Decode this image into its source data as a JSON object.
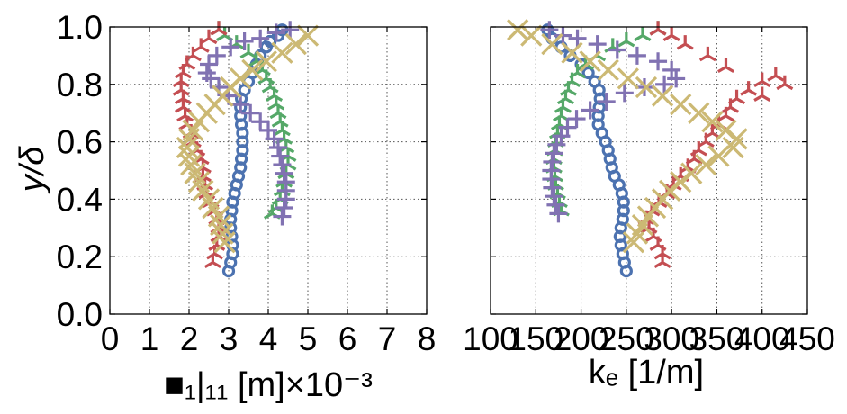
{
  "colors": {
    "blue": "#4c72b0",
    "green": "#55a868",
    "red": "#c44e52",
    "purple": "#8172b2",
    "gold": "#ccb974"
  },
  "chart_data": [
    {
      "type": "scatter",
      "xlabel": "■₁|₁₁ [m]×10⁻³",
      "ylabel": "y/δ",
      "xlim": [
        0,
        8
      ],
      "ylim": [
        0,
        1.0
      ],
      "xticks": [
        "0",
        "1",
        "2",
        "3",
        "4",
        "5",
        "6",
        "7",
        "8"
      ],
      "yticks": [
        "0.0",
        "0.2",
        "0.4",
        "0.6",
        "0.8",
        "1.0"
      ],
      "grid": true,
      "series": [
        {
          "marker": "circle",
          "color": "blue",
          "points": [
            [
              3.0,
              0.15
            ],
            [
              3.05,
              0.18
            ],
            [
              3.1,
              0.21
            ],
            [
              3.1,
              0.24
            ],
            [
              3.08,
              0.27
            ],
            [
              3.05,
              0.3
            ],
            [
              3.05,
              0.33
            ],
            [
              3.08,
              0.36
            ],
            [
              3.1,
              0.39
            ],
            [
              3.15,
              0.42
            ],
            [
              3.2,
              0.45
            ],
            [
              3.25,
              0.48
            ],
            [
              3.3,
              0.51
            ],
            [
              3.32,
              0.54
            ],
            [
              3.35,
              0.57
            ],
            [
              3.35,
              0.6
            ],
            [
              3.35,
              0.63
            ],
            [
              3.32,
              0.66
            ],
            [
              3.3,
              0.69
            ],
            [
              3.3,
              0.72
            ],
            [
              3.32,
              0.75
            ],
            [
              3.4,
              0.78
            ],
            [
              3.5,
              0.81
            ],
            [
              3.6,
              0.84
            ],
            [
              3.7,
              0.87
            ],
            [
              3.8,
              0.9
            ],
            [
              3.95,
              0.93
            ],
            [
              4.05,
              0.95
            ],
            [
              4.25,
              0.97
            ],
            [
              4.35,
              0.99
            ]
          ]
        },
        {
          "marker": "tri",
          "color": "green",
          "points": [
            [
              4.1,
              0.35
            ],
            [
              4.2,
              0.37
            ],
            [
              4.3,
              0.4
            ],
            [
              4.35,
              0.43
            ],
            [
              4.4,
              0.46
            ],
            [
              4.45,
              0.49
            ],
            [
              4.5,
              0.52
            ],
            [
              4.5,
              0.55
            ],
            [
              4.45,
              0.58
            ],
            [
              4.4,
              0.61
            ],
            [
              4.35,
              0.64
            ],
            [
              4.3,
              0.67
            ],
            [
              4.25,
              0.7
            ],
            [
              4.2,
              0.73
            ],
            [
              4.15,
              0.76
            ],
            [
              4.05,
              0.79
            ],
            [
              3.95,
              0.82
            ],
            [
              3.85,
              0.85
            ],
            [
              3.7,
              0.88
            ],
            [
              3.5,
              0.91
            ],
            [
              3.2,
              0.94
            ],
            [
              2.9,
              0.97
            ],
            [
              2.75,
              0.99
            ]
          ]
        },
        {
          "marker": "tri",
          "color": "red",
          "points": [
            [
              2.6,
              0.18
            ],
            [
              2.65,
              0.21
            ],
            [
              2.7,
              0.24
            ],
            [
              2.75,
              0.27
            ],
            [
              2.75,
              0.3
            ],
            [
              2.7,
              0.33
            ],
            [
              2.65,
              0.36
            ],
            [
              2.55,
              0.39
            ],
            [
              2.45,
              0.42
            ],
            [
              2.4,
              0.45
            ],
            [
              2.35,
              0.48
            ],
            [
              2.35,
              0.51
            ],
            [
              2.3,
              0.54
            ],
            [
              2.2,
              0.57
            ],
            [
              2.1,
              0.6
            ],
            [
              2.05,
              0.63
            ],
            [
              1.95,
              0.66
            ],
            [
              1.9,
              0.69
            ],
            [
              1.85,
              0.72
            ],
            [
              1.85,
              0.75
            ],
            [
              1.8,
              0.78
            ],
            [
              1.8,
              0.81
            ],
            [
              1.85,
              0.84
            ],
            [
              1.95,
              0.87
            ],
            [
              2.1,
              0.9
            ],
            [
              2.3,
              0.93
            ],
            [
              2.5,
              0.96
            ],
            [
              2.75,
              0.99
            ]
          ]
        },
        {
          "marker": "plus",
          "color": "purple",
          "points": [
            [
              4.35,
              0.34
            ],
            [
              4.4,
              0.37
            ],
            [
              4.45,
              0.4
            ],
            [
              4.45,
              0.43
            ],
            [
              4.45,
              0.46
            ],
            [
              4.4,
              0.49
            ],
            [
              4.35,
              0.52
            ],
            [
              4.3,
              0.55
            ],
            [
              4.25,
              0.58
            ],
            [
              4.15,
              0.61
            ],
            [
              4.0,
              0.64
            ],
            [
              3.8,
              0.67
            ],
            [
              3.55,
              0.7
            ],
            [
              3.3,
              0.73
            ],
            [
              3.0,
              0.76
            ],
            [
              2.75,
              0.79
            ],
            [
              2.55,
              0.82
            ],
            [
              2.45,
              0.84
            ],
            [
              2.5,
              0.87
            ],
            [
              2.7,
              0.9
            ],
            [
              3.05,
              0.93
            ],
            [
              3.4,
              0.95
            ],
            [
              3.8,
              0.96
            ],
            [
              4.2,
              0.98
            ],
            [
              4.55,
              0.99
            ]
          ]
        },
        {
          "marker": "x",
          "color": "gold",
          "points": [
            [
              2.9,
              0.25
            ],
            [
              2.85,
              0.28
            ],
            [
              2.8,
              0.31
            ],
            [
              2.75,
              0.34
            ],
            [
              2.6,
              0.37
            ],
            [
              2.5,
              0.4
            ],
            [
              2.35,
              0.43
            ],
            [
              2.25,
              0.46
            ],
            [
              2.15,
              0.49
            ],
            [
              2.05,
              0.52
            ],
            [
              2.0,
              0.55
            ],
            [
              1.95,
              0.58
            ],
            [
              2.0,
              0.61
            ],
            [
              2.1,
              0.64
            ],
            [
              2.25,
              0.67
            ],
            [
              2.45,
              0.7
            ],
            [
              2.65,
              0.73
            ],
            [
              2.85,
              0.76
            ],
            [
              3.05,
              0.79
            ],
            [
              3.3,
              0.82
            ],
            [
              3.6,
              0.85
            ],
            [
              3.95,
              0.88
            ],
            [
              4.35,
              0.91
            ],
            [
              4.7,
              0.94
            ],
            [
              5.0,
              0.97
            ]
          ]
        }
      ]
    },
    {
      "type": "scatter",
      "xlabel": "kₑ [1/m]",
      "ylabel": "",
      "xlim": [
        100,
        450
      ],
      "ylim": [
        0,
        1.0
      ],
      "xticks": [
        "100",
        "150",
        "200",
        "250",
        "300",
        "350",
        "400",
        "450"
      ],
      "yticks": [],
      "grid": true,
      "series": [
        {
          "marker": "circle",
          "color": "blue",
          "points": [
            [
              250,
              0.15
            ],
            [
              248,
              0.18
            ],
            [
              246,
              0.21
            ],
            [
              244,
              0.24
            ],
            [
              243,
              0.27
            ],
            [
              244,
              0.3
            ],
            [
              246,
              0.33
            ],
            [
              247,
              0.36
            ],
            [
              247,
              0.39
            ],
            [
              245,
              0.42
            ],
            [
              242,
              0.45
            ],
            [
              237,
              0.48
            ],
            [
              234,
              0.51
            ],
            [
              232,
              0.54
            ],
            [
              230,
              0.57
            ],
            [
              227,
              0.6
            ],
            [
              223,
              0.63
            ],
            [
              219,
              0.66
            ],
            [
              219,
              0.69
            ],
            [
              220,
              0.72
            ],
            [
              221,
              0.75
            ],
            [
              220,
              0.78
            ],
            [
              215,
              0.81
            ],
            [
              208,
              0.84
            ],
            [
              200,
              0.87
            ],
            [
              188,
              0.9
            ],
            [
              178,
              0.93
            ],
            [
              168,
              0.96
            ],
            [
              163,
              0.99
            ]
          ]
        },
        {
          "marker": "tri",
          "color": "green",
          "points": [
            [
              178,
              0.36
            ],
            [
              176,
              0.39
            ],
            [
              174,
              0.42
            ],
            [
              172,
              0.45
            ],
            [
              171,
              0.48
            ],
            [
              170,
              0.51
            ],
            [
              170,
              0.54
            ],
            [
              171,
              0.57
            ],
            [
              172,
              0.6
            ],
            [
              174,
              0.63
            ],
            [
              176,
              0.66
            ],
            [
              178,
              0.69
            ],
            [
              180,
              0.72
            ],
            [
              183,
              0.75
            ],
            [
              186,
              0.78
            ],
            [
              190,
              0.81
            ],
            [
              196,
              0.84
            ],
            [
              205,
              0.87
            ],
            [
              218,
              0.9
            ],
            [
              235,
              0.93
            ],
            [
              250,
              0.95
            ],
            [
              268,
              0.97
            ],
            [
              285,
              0.99
            ]
          ]
        },
        {
          "marker": "tri",
          "color": "red",
          "points": [
            [
              290,
              0.18
            ],
            [
              290,
              0.21
            ],
            [
              285,
              0.24
            ],
            [
              280,
              0.27
            ],
            [
              275,
              0.3
            ],
            [
              272,
              0.33
            ],
            [
              278,
              0.36
            ],
            [
              286,
              0.39
            ],
            [
              295,
              0.42
            ],
            [
              302,
              0.45
            ],
            [
              310,
              0.48
            ],
            [
              318,
              0.51
            ],
            [
              325,
              0.54
            ],
            [
              330,
              0.57
            ],
            [
              338,
              0.6
            ],
            [
              345,
              0.63
            ],
            [
              352,
              0.66
            ],
            [
              360,
              0.69
            ],
            [
              365,
              0.72
            ],
            [
              372,
              0.75
            ],
            [
              385,
              0.78
            ],
            [
              400,
              0.81
            ],
            [
              415,
              0.83
            ],
            [
              425,
              0.8
            ],
            [
              400,
              0.76
            ],
            [
              360,
              0.86
            ],
            [
              340,
              0.9
            ],
            [
              315,
              0.94
            ],
            [
              300,
              0.97
            ],
            [
              285,
              0.99
            ]
          ]
        },
        {
          "marker": "plus",
          "color": "purple",
          "points": [
            [
              175,
              0.35
            ],
            [
              172,
              0.38
            ],
            [
              170,
              0.41
            ],
            [
              168,
              0.44
            ],
            [
              167,
              0.47
            ],
            [
              167,
              0.5
            ],
            [
              168,
              0.53
            ],
            [
              170,
              0.56
            ],
            [
              173,
              0.59
            ],
            [
              178,
              0.62
            ],
            [
              185,
              0.65
            ],
            [
              195,
              0.68
            ],
            [
              210,
              0.71
            ],
            [
              228,
              0.74
            ],
            [
              248,
              0.77
            ],
            [
              270,
              0.79
            ],
            [
              292,
              0.8
            ],
            [
              305,
              0.82
            ],
            [
              300,
              0.85
            ],
            [
              285,
              0.88
            ],
            [
              262,
              0.9
            ],
            [
              240,
              0.92
            ],
            [
              218,
              0.94
            ],
            [
              196,
              0.96
            ],
            [
              180,
              0.97
            ],
            [
              165,
              0.99
            ]
          ]
        },
        {
          "marker": "x",
          "color": "gold",
          "points": [
            [
              258,
              0.25
            ],
            [
              262,
              0.28
            ],
            [
              268,
              0.31
            ],
            [
              274,
              0.34
            ],
            [
              282,
              0.37
            ],
            [
              290,
              0.4
            ],
            [
              298,
              0.43
            ],
            [
              310,
              0.46
            ],
            [
              322,
              0.49
            ],
            [
              338,
              0.52
            ],
            [
              352,
              0.55
            ],
            [
              368,
              0.58
            ],
            [
              372,
              0.61
            ],
            [
              360,
              0.64
            ],
            [
              345,
              0.67
            ],
            [
              330,
              0.7
            ],
            [
              310,
              0.73
            ],
            [
              290,
              0.76
            ],
            [
              272,
              0.79
            ],
            [
              252,
              0.82
            ],
            [
              230,
              0.85
            ],
            [
              210,
              0.88
            ],
            [
              190,
              0.91
            ],
            [
              168,
              0.94
            ],
            [
              145,
              0.97
            ],
            [
              130,
              0.99
            ]
          ]
        }
      ]
    }
  ]
}
